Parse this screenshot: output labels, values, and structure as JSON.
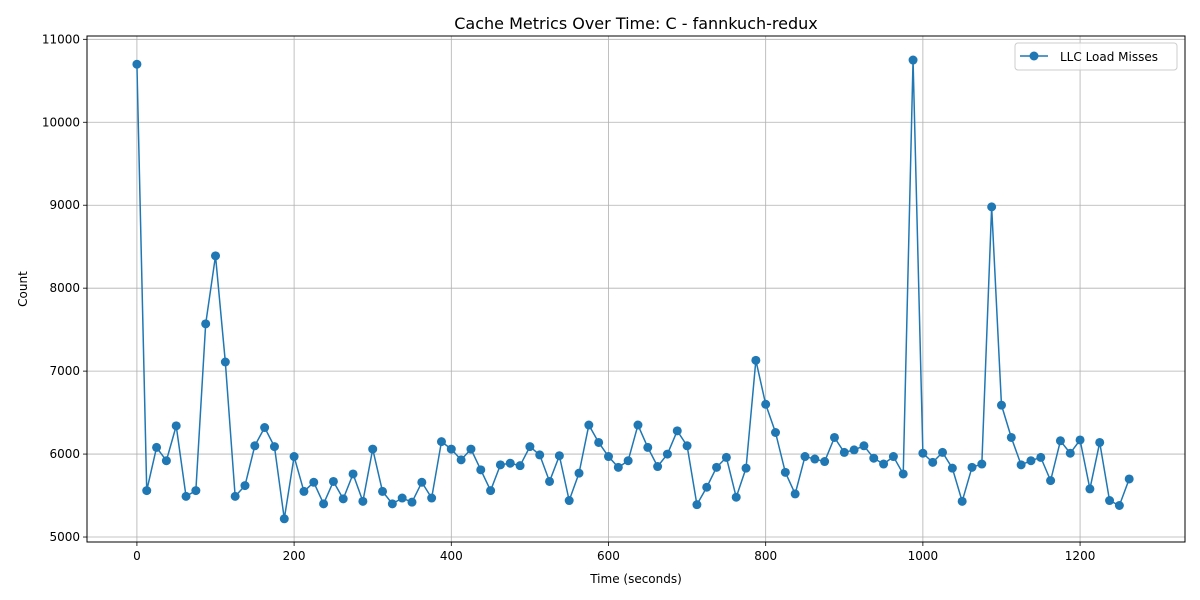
{
  "chart_data": {
    "type": "line",
    "title": "Cache Metrics Over Time: C - fannkuch-redux",
    "xlabel": "Time (seconds)",
    "ylabel": "Count",
    "xlim": [
      -63.5,
      1333.5
    ],
    "ylim": [
      4940,
      11040
    ],
    "xticks": [
      0,
      200,
      400,
      600,
      800,
      1000,
      1200
    ],
    "yticks": [
      5000,
      6000,
      7000,
      8000,
      9000,
      10000,
      11000
    ],
    "grid": true,
    "legend_position": "top-right",
    "colors": {
      "series": "#1f77b4"
    },
    "series": [
      {
        "name": "LLC Load Misses",
        "x": [
          0,
          12.5,
          25,
          37.5,
          50,
          62.5,
          75,
          87.5,
          100,
          112.5,
          125,
          137.5,
          150,
          162.5,
          175,
          187.5,
          200,
          212.5,
          225,
          237.5,
          250,
          262.5,
          275,
          287.5,
          300,
          312.5,
          325,
          337.5,
          350,
          362.5,
          375,
          387.5,
          400,
          412.5,
          425,
          437.5,
          450,
          462.5,
          475,
          487.5,
          500,
          512.5,
          525,
          537.5,
          550,
          562.5,
          575,
          587.5,
          600,
          612.5,
          625,
          637.5,
          650,
          662.5,
          675,
          687.5,
          700,
          712.5,
          725,
          737.5,
          750,
          762.5,
          775,
          787.5,
          800,
          812.5,
          825,
          837.5,
          850,
          862.5,
          875,
          887.5,
          900,
          912.5,
          925,
          937.5,
          950,
          962.5,
          975,
          987.5,
          1000,
          1012.5,
          1025,
          1037.5,
          1050,
          1062.5,
          1075,
          1087.5,
          1100,
          1112.5,
          1125,
          1137.5,
          1150,
          1162.5,
          1175,
          1187.5,
          1200,
          1212.5,
          1225,
          1237.5,
          1250,
          1262.5
        ],
        "values": [
          10700,
          5560,
          6080,
          5920,
          6340,
          5490,
          5560,
          7570,
          8390,
          7110,
          5490,
          5620,
          6100,
          6320,
          6090,
          5220,
          5970,
          5550,
          5660,
          5400,
          5670,
          5460,
          5760,
          5430,
          6060,
          5550,
          5400,
          5470,
          5420,
          5660,
          5470,
          6150,
          6060,
          5930,
          6060,
          5810,
          5560,
          5870,
          5890,
          5860,
          6090,
          5990,
          5670,
          5980,
          5440,
          5770,
          6350,
          6140,
          5970,
          5840,
          5920,
          6350,
          6080,
          5850,
          6000,
          6280,
          6100,
          5390,
          5600,
          5840,
          5960,
          5480,
          5830,
          7130,
          6600,
          6260,
          5780,
          5520,
          5970,
          5940,
          5910,
          6200,
          6020,
          6050,
          6100,
          5950,
          5880,
          5970,
          5760,
          10750,
          6010,
          5900,
          6020,
          5830,
          5430,
          5840,
          5880,
          8980,
          6590,
          6200,
          5870,
          5920,
          5960,
          5680,
          6160,
          6010,
          6170,
          5580,
          6140,
          5440,
          5380,
          5700
        ]
      }
    ]
  }
}
